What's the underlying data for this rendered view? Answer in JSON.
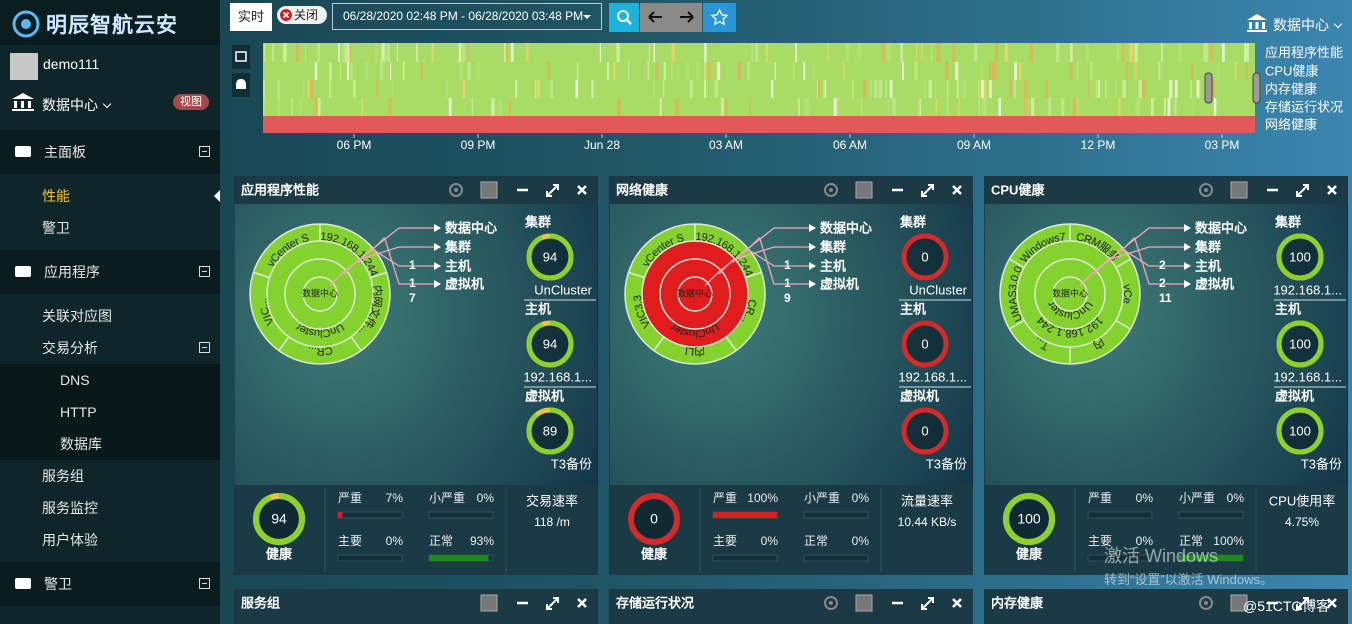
{
  "brand": {
    "logo": "明辰智航云安",
    "user": "demo111",
    "datacenter": "数据中心",
    "badge": "视图"
  },
  "menu": [
    {
      "label": "主面板",
      "level": 0,
      "toggle": true
    },
    {
      "label": "性能",
      "level": 1,
      "active": true
    },
    {
      "label": "警卫",
      "level": 1
    },
    {
      "label": "应用程序",
      "level": 0,
      "toggle": true
    },
    {
      "label": "关联对应图",
      "level": 1
    },
    {
      "label": "交易分析",
      "level": 1,
      "toggle": true
    },
    {
      "label": "DNS",
      "level": 2
    },
    {
      "label": "HTTP",
      "level": 2
    },
    {
      "label": "数据库",
      "level": 2
    },
    {
      "label": "服务组",
      "level": 1
    },
    {
      "label": "服务监控",
      "level": 1
    },
    {
      "label": "用户体验",
      "level": 1
    },
    {
      "label": "警卫",
      "level": 0,
      "toggle": true
    }
  ],
  "toolbar": {
    "live": "实时",
    "close": "关闭",
    "range": "06/28/2020 02:48 PM - 06/28/2020 03:48 PM",
    "datacenter": "数据中心"
  },
  "timeline": {
    "rows": [
      "应用程序性能",
      "CPU健康",
      "内存健康",
      "存储运行状况",
      "网络健康"
    ],
    "row_colors": [
      "#a8dc64",
      "#a8dc64",
      "#a8dc64",
      "#a8dc64",
      "#e35858"
    ],
    "x_labels": [
      "06 PM",
      "09 PM",
      "Jun 28",
      "03 AM",
      "06 AM",
      "09 AM",
      "12 PM",
      "03 PM"
    ]
  },
  "panels": [
    {
      "title": "应用程序性能",
      "legend": [
        "数据中心",
        "集群",
        "主机",
        "虚拟机"
      ],
      "counts": [
        1,
        1,
        7
      ],
      "ring_colors": [
        "#84d22e",
        "#84d22e",
        "#84d22e",
        "#84d22e"
      ],
      "ring_labels": [
        [
          "数据中心"
        ],
        [],
        [
          "UnCluster"
        ],
        [
          "192.168.1.244",
          "内网文件...",
          "CR...",
          "VIC...",
          "vCenter S"
        ]
      ],
      "gauges": [
        {
          "label": "集群",
          "value": 94,
          "name": "UnCluster"
        },
        {
          "label": "主机",
          "value": 94,
          "name": "192.168.1..."
        },
        {
          "label": "虚拟机",
          "value": 89,
          "name": "T3备份"
        }
      ],
      "health": {
        "value": 94,
        "label": "健康"
      },
      "stats": [
        {
          "label": "严重",
          "value": 7,
          "value_label": "7%",
          "color": "#d42020"
        },
        {
          "label": "小严重",
          "value": 0,
          "value_label": "0%",
          "color": "#e0a020"
        },
        {
          "label": "主要",
          "value": 0,
          "value_label": "0%",
          "color": "#e07020"
        },
        {
          "label": "正常",
          "value": 93,
          "value_label": "93%",
          "color": "#1e8a1e"
        }
      ],
      "rate": {
        "label": "交易速率",
        "value_label": "118 /m"
      }
    },
    {
      "title": "网络健康",
      "legend": [
        "数据中心",
        "集群",
        "主机",
        "虚拟机"
      ],
      "counts": [
        1,
        1,
        9
      ],
      "ring_colors": [
        "#e01c1c",
        "#e01c1c",
        "#e01c1c",
        "#84d22e"
      ],
      "ring_labels": [
        [
          "数据中心"
        ],
        [],
        [
          "UnCluster"
        ],
        [
          "192.168.1.244",
          "CR...",
          "内LI",
          "VIC3.3",
          "vCenter S"
        ]
      ],
      "gauges": [
        {
          "label": "集群",
          "value": 0,
          "name": "UnCluster"
        },
        {
          "label": "主机",
          "value": 0,
          "name": "192.168.1..."
        },
        {
          "label": "虚拟机",
          "value": 0,
          "name": "T3备份"
        }
      ],
      "health": {
        "value": 0,
        "label": "健康"
      },
      "stats": [
        {
          "label": "严重",
          "value": 100,
          "value_label": "100%",
          "color": "#d42020"
        },
        {
          "label": "小严重",
          "value": 0,
          "value_label": "0%",
          "color": "#e0a020"
        },
        {
          "label": "主要",
          "value": 0,
          "value_label": "0%",
          "color": "#e07020"
        },
        {
          "label": "正常",
          "value": 0,
          "value_label": "0%",
          "color": "#1e8a1e"
        }
      ],
      "rate": {
        "label": "流量速率",
        "value_label": "10.44 KB/s"
      }
    },
    {
      "title": "CPU健康",
      "legend": [
        "数据中心",
        "集群",
        "主机",
        "虚拟机"
      ],
      "counts": [
        2,
        2,
        11
      ],
      "ring_colors": [
        "#84d22e",
        "#84d22e",
        "#84d22e",
        "#84d22e"
      ],
      "ring_labels": [
        [
          "数据中心"
        ],
        [
          "UnCluster"
        ],
        [
          "192.168.1.244"
        ],
        [
          "CRM服务",
          "vCe",
          "内",
          "T...",
          "UMAS3.0.0",
          "Windows7"
        ]
      ],
      "gauges": [
        {
          "label": "集群",
          "value": 100,
          "name": "192.168.1..."
        },
        {
          "label": "主机",
          "value": 100,
          "name": "192.168.1..."
        },
        {
          "label": "虚拟机",
          "value": 100,
          "name": "T3备份"
        }
      ],
      "health": {
        "value": 100,
        "label": "健康"
      },
      "stats": [
        {
          "label": "严重",
          "value": 0,
          "value_label": "0%",
          "color": "#d42020"
        },
        {
          "label": "小严重",
          "value": 0,
          "value_label": "0%",
          "color": "#e0a020"
        },
        {
          "label": "主要",
          "value": 0,
          "value_label": "0%",
          "color": "#e07020"
        },
        {
          "label": "正常",
          "value": 100,
          "value_label": "100%",
          "color": "#1e8a1e"
        }
      ],
      "rate": {
        "label": "CPU使用率",
        "value_label": "4.75%"
      }
    }
  ],
  "lower_panels": [
    "服务组",
    "存储运行状况",
    "内存健康"
  ],
  "watermark": {
    "title": "激活 Windows",
    "hint": "转到“设置”以激活 Windows。",
    "site": "@51CTO博客"
  }
}
